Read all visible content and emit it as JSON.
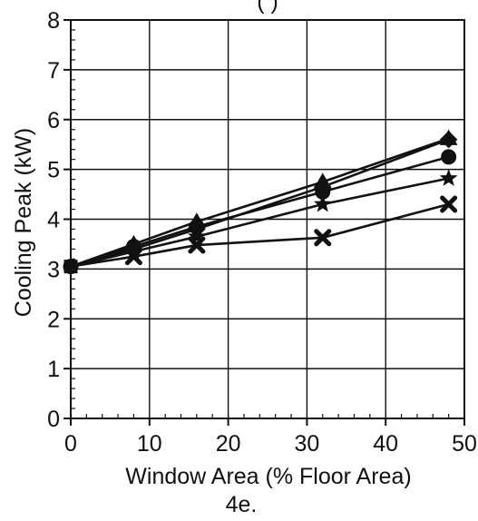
{
  "chart_data": {
    "type": "line",
    "title": "(          )",
    "xlabel": "Window Area (% Floor Area)",
    "ylabel": "Cooling Peak (kW)",
    "caption": "4e.",
    "xlim": [
      0,
      50
    ],
    "ylim": [
      0,
      8
    ],
    "x_ticks": [
      "0",
      "10",
      "20",
      "30",
      "40",
      "50"
    ],
    "y_ticks": [
      "0",
      "1",
      "2",
      "3",
      "4",
      "5",
      "6",
      "7",
      "8"
    ],
    "grid": true,
    "x": [
      0,
      8,
      16,
      32,
      48
    ],
    "series": [
      {
        "marker": "triangle",
        "values": [
          3.05,
          3.5,
          3.95,
          4.75,
          5.62
        ]
      },
      {
        "marker": "circle",
        "values": [
          3.05,
          3.45,
          3.85,
          4.55,
          5.25
        ]
      },
      {
        "marker": "diamond",
        "values": [
          3.05,
          3.4,
          3.8,
          4.65,
          5.6
        ]
      },
      {
        "marker": "star",
        "values": [
          3.05,
          3.35,
          3.65,
          4.3,
          4.82
        ]
      },
      {
        "marker": "x",
        "values": [
          3.05,
          3.25,
          3.48,
          3.63,
          4.3
        ]
      }
    ]
  }
}
